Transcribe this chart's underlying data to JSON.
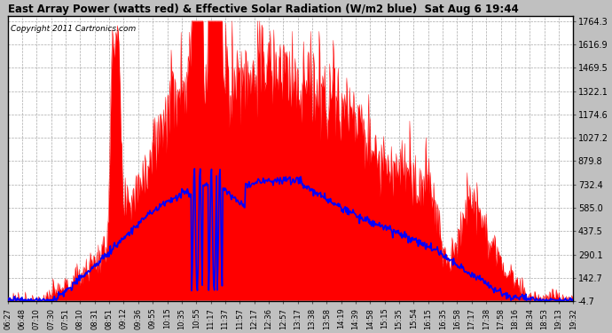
{
  "title": "East Array Power (watts red) & Effective Solar Radiation (W/m2 blue)  Sat Aug 6 19:44",
  "copyright": "Copyright 2011 Cartronics.com",
  "ymin": -4.7,
  "ymax": 1764.3,
  "yticks": [
    -4.7,
    142.7,
    290.1,
    437.5,
    585.0,
    732.4,
    879.8,
    1027.2,
    1174.6,
    1322.1,
    1469.5,
    1616.9,
    1764.3
  ],
  "xtick_labels": [
    "06:27",
    "06:48",
    "07:10",
    "07:30",
    "07:51",
    "08:10",
    "08:31",
    "08:51",
    "09:12",
    "09:36",
    "09:55",
    "10:15",
    "10:35",
    "10:55",
    "11:17",
    "11:37",
    "11:57",
    "12:17",
    "12:36",
    "12:57",
    "13:17",
    "13:38",
    "13:58",
    "14:19",
    "14:39",
    "14:58",
    "15:15",
    "15:35",
    "15:54",
    "16:15",
    "16:35",
    "16:58",
    "17:17",
    "17:38",
    "17:58",
    "18:16",
    "18:34",
    "18:53",
    "19:13",
    "19:32"
  ],
  "bg_color": "#ffffff",
  "red_color": "#ff0000",
  "blue_color": "#0000ff",
  "grid_color": "#aaaaaa",
  "outer_bg": "#c0c0c0"
}
